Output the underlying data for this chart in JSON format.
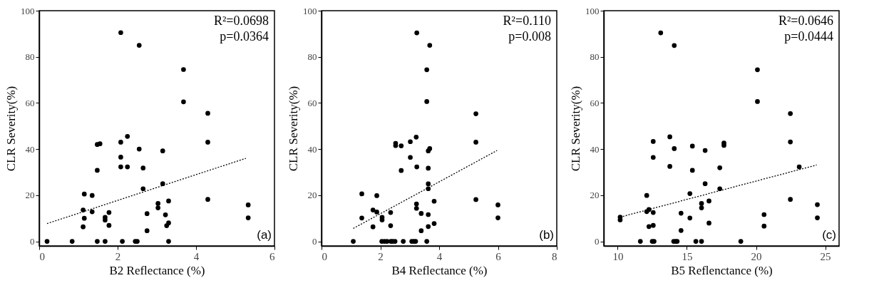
{
  "chart_data": [
    {
      "type": "scatter",
      "xlabel": "B2 Reflectance (%)",
      "ylabel": "CLR Severity(%)",
      "xlim": [
        0,
        6
      ],
      "ylim": [
        -2,
        100
      ],
      "xticks": [
        0,
        2,
        4,
        6
      ],
      "yticks": [
        0,
        20,
        40,
        60,
        80,
        100
      ],
      "annotations": [
        "R²=0.0698",
        "p=0.0364",
        "(a)"
      ],
      "series": [
        {
          "marker": "circle",
          "color": "#000000",
          "x": [
            0.2,
            0.84,
            2.08,
            2.55,
            3.68,
            3.68,
            4.3,
            4.3,
            2.25,
            2.08,
            1.48,
            1.55,
            2.55,
            3.15,
            2.08,
            2.08,
            2.25,
            2.65,
            1.48,
            3.15,
            2.65,
            1.15,
            1.35,
            4.3,
            3.3,
            3.03,
            3.03,
            5.33,
            1.12,
            1.35,
            1.78,
            2.75,
            3.22,
            1.15,
            1.68,
            1.68,
            5.33,
            3.3,
            3.25,
            1.12,
            1.78,
            2.75,
            1.48,
            1.68,
            2.12,
            2.45,
            2.5,
            3.3
          ],
          "values": [
            0,
            0,
            90.5,
            85,
            74.5,
            60.5,
            55.5,
            43,
            45.5,
            43,
            42,
            42.3,
            40,
            39.2,
            36.5,
            32.3,
            32.3,
            31.8,
            30.8,
            25,
            22.8,
            20.5,
            19.9,
            18.2,
            17.5,
            16.4,
            14.5,
            15.8,
            13.6,
            12.8,
            12.5,
            12,
            11.5,
            10,
            10.4,
            9.2,
            10.2,
            8,
            6.8,
            6.3,
            6.9,
            4.6,
            0,
            0,
            0,
            0,
            0,
            0
          ]
        },
        {
          "type": "line",
          "marker": "none",
          "color": "#000000",
          "line_style": "dotted",
          "x": [
            0.2,
            5.27
          ],
          "values": [
            7.7,
            36
          ]
        }
      ]
    },
    {
      "type": "scatter",
      "xlabel": "B4 Reflectance (%)",
      "ylabel": "CLR Severity(%)",
      "xlim": [
        0,
        8
      ],
      "ylim": [
        -2,
        100
      ],
      "xticks": [
        0,
        2,
        4,
        6,
        8
      ],
      "yticks": [
        0,
        20,
        40,
        60,
        80,
        100
      ],
      "annotations": [
        "R²=0.110",
        "p=0.008",
        "(b)"
      ],
      "series": [
        {
          "marker": "circle",
          "color": "#000000",
          "x": [
            1.08,
            3.24,
            3.68,
            3.58,
            3.58,
            5.25,
            5.25,
            3.22,
            2.52,
            2.52,
            2.71,
            3.02,
            3.68,
            3.63,
            3.02,
            3.24,
            3.63,
            2.71,
            3.63,
            3.63,
            1.37,
            1.88,
            5.25,
            3.83,
            3.23,
            3.23,
            6.0,
            1.75,
            1.88,
            2.35,
            3.39,
            3.63,
            1.37,
            2.06,
            2.06,
            6.0,
            3.83,
            2.35,
            1.75,
            3.63,
            3.39,
            2.05,
            2.14,
            2.23,
            2.36,
            2.42,
            2.5,
            2.78,
            3.07,
            3.14,
            3.2,
            3.58
          ],
          "values": [
            0,
            90.4,
            85,
            74.4,
            60.6,
            55.3,
            43,
            45.2,
            42.5,
            41.5,
            41.4,
            43.2,
            40.2,
            39.2,
            36.4,
            32.3,
            31.7,
            30.7,
            24.9,
            22.8,
            20.6,
            19.8,
            18.1,
            17.4,
            16.2,
            14.3,
            15.8,
            13.6,
            12.7,
            12.5,
            12.1,
            11.6,
            10.1,
            10.4,
            9.3,
            10.2,
            7.7,
            6.8,
            6.3,
            6.4,
            4.6,
            0,
            0,
            0,
            0,
            0,
            0,
            0,
            0,
            0,
            0,
            0
          ]
        },
        {
          "type": "line",
          "marker": "none",
          "color": "#000000",
          "line_style": "dotted",
          "x": [
            1.08,
            5.97
          ],
          "values": [
            5.6,
            39.4
          ]
        }
      ]
    },
    {
      "type": "scatter",
      "xlabel": "B5 Reflenctance (%)",
      "ylabel": "CLR Severity(%)",
      "xlim": [
        9,
        26
      ],
      "ylim": [
        -2,
        100
      ],
      "xticks": [
        10,
        15,
        20,
        25
      ],
      "yticks": [
        0,
        20,
        40,
        60,
        80,
        100
      ],
      "annotations": [
        "R²=0.0646",
        "p=0.0444",
        "(c)"
      ],
      "series": [
        {
          "marker": "circle",
          "color": "#000000",
          "x": [
            10.18,
            10.18,
            11.64,
            13.11,
            14.09,
            20.1,
            20.1,
            22.48,
            22.48,
            13.77,
            12.57,
            12.57,
            14.09,
            15.4,
            16.32,
            17.68,
            17.68,
            13.77,
            17.38,
            23.12,
            15.4,
            16.32,
            17.38,
            15.22,
            12.1,
            22.48,
            16.6,
            16.06,
            16.06,
            24.43,
            12.26,
            12.1,
            12.57,
            14.58,
            20.58,
            15.22,
            24.43,
            16.6,
            12.57,
            12.26,
            20.58,
            14.58,
            12.5,
            12.63,
            14.05,
            14.2,
            14.3,
            15.65,
            16.06,
            18.9
          ],
          "values": [
            10.5,
            9.3,
            0,
            90.4,
            84.9,
            74.4,
            60.6,
            55.4,
            43.1,
            45.3,
            43.3,
            36.4,
            40.2,
            41.3,
            39.4,
            42.6,
            41.6,
            32.5,
            31.9,
            32.3,
            30.8,
            25,
            22.8,
            20.7,
            19.9,
            18.2,
            17.5,
            16.4,
            14.5,
            15.9,
            13.8,
            12.9,
            12.5,
            12.2,
            11.6,
            10.1,
            10.2,
            7.9,
            6.9,
            6.4,
            6.6,
            4.7,
            0,
            0,
            0,
            0,
            0,
            0,
            0,
            0
          ]
        },
        {
          "type": "line",
          "marker": "none",
          "color": "#000000",
          "line_style": "dotted",
          "x": [
            10.18,
            24.38
          ],
          "values": [
            10.5,
            33.1
          ]
        }
      ]
    }
  ]
}
